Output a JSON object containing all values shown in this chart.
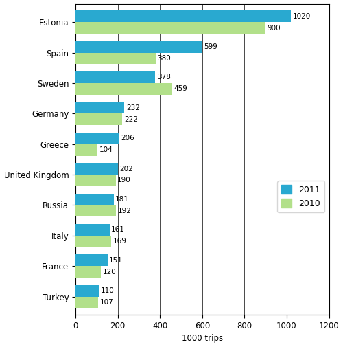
{
  "countries": [
    "Estonia",
    "Spain",
    "Sweden",
    "Germany",
    "Greece",
    "United Kingdom",
    "Russia",
    "Italy",
    "France",
    "Turkey"
  ],
  "values_2011": [
    1020,
    599,
    378,
    232,
    206,
    202,
    181,
    161,
    151,
    110
  ],
  "values_2010": [
    900,
    380,
    459,
    222,
    104,
    190,
    192,
    169,
    120,
    107
  ],
  "color_2011": "#29a9d0",
  "color_2010": "#b2e08a",
  "xlabel": "1000 trips",
  "xlim": [
    0,
    1200
  ],
  "xticks": [
    0,
    200,
    400,
    600,
    800,
    1000,
    1200
  ],
  "legend_labels": [
    "2011",
    "2010"
  ],
  "bar_height": 0.38,
  "label_fontsize": 7.5,
  "tick_fontsize": 8.5,
  "legend_fontsize": 9,
  "background_color": "#ffffff"
}
